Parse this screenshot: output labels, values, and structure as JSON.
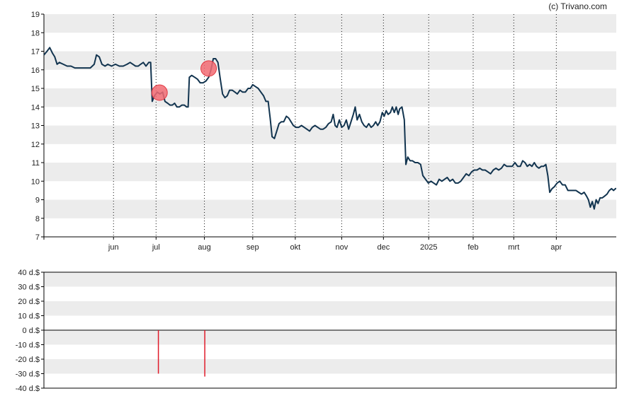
{
  "copyright": "(c) Trivano.com",
  "colors": {
    "price_line": "#12344f",
    "marker_fill": "#f26b73",
    "marker_stroke": "#e23a44",
    "volume_bar": "#e01b2a",
    "band": "#ececec",
    "grid_vertical": "#111111",
    "axis": "#000000"
  },
  "chart_data": [
    {
      "type": "line",
      "ylim": [
        7,
        19
      ],
      "yticks": [
        "7",
        "8",
        "9",
        "10",
        "11",
        "12",
        "13",
        "14",
        "15",
        "16",
        "17",
        "18",
        "19"
      ],
      "grid": "dotted vertical lines at month ticks, alternating horizontal bands",
      "x_tick_labels": [
        "jun",
        "jul",
        "aug",
        "sep",
        "okt",
        "nov",
        "dec",
        "2025",
        "feb",
        "mrt",
        "apr"
      ],
      "x_tick_positions": [
        18,
        29,
        41.5,
        54,
        65,
        77,
        87.8,
        99.5,
        111,
        121.5,
        132.5
      ],
      "x_range": [
        0,
        148
      ],
      "price": [
        [
          0,
          16.8
        ],
        [
          0.8,
          17.0
        ],
        [
          1.5,
          17.2
        ],
        [
          2.2,
          16.9
        ],
        [
          2.8,
          16.7
        ],
        [
          3.4,
          16.3
        ],
        [
          4,
          16.4
        ],
        [
          5,
          16.3
        ],
        [
          6,
          16.2
        ],
        [
          7,
          16.2
        ],
        [
          8,
          16.1
        ],
        [
          9,
          16.1
        ],
        [
          10,
          16.1
        ],
        [
          11,
          16.1
        ],
        [
          12,
          16.1
        ],
        [
          13,
          16.3
        ],
        [
          13.6,
          16.8
        ],
        [
          14.3,
          16.7
        ],
        [
          15,
          16.3
        ],
        [
          15.8,
          16.2
        ],
        [
          16.5,
          16.3
        ],
        [
          17.5,
          16.2
        ],
        [
          18.5,
          16.3
        ],
        [
          19.5,
          16.2
        ],
        [
          20.5,
          16.2
        ],
        [
          21.5,
          16.3
        ],
        [
          22.3,
          16.4
        ],
        [
          23,
          16.3
        ],
        [
          23.7,
          16.2
        ],
        [
          24.4,
          16.2
        ],
        [
          25,
          16.3
        ],
        [
          25.7,
          16.4
        ],
        [
          26.4,
          16.2
        ],
        [
          27.1,
          16.4
        ],
        [
          27.6,
          16.4
        ],
        [
          28.0,
          14.3
        ],
        [
          28.6,
          14.6
        ],
        [
          29.3,
          14.8
        ],
        [
          30,
          14.7
        ],
        [
          30.7,
          14.8
        ],
        [
          31.3,
          14.3
        ],
        [
          32,
          14.2
        ],
        [
          32.6,
          14.1
        ],
        [
          33.2,
          14.1
        ],
        [
          33.8,
          14.2
        ],
        [
          34.4,
          14.0
        ],
        [
          35,
          14.0
        ],
        [
          35.7,
          14.1
        ],
        [
          36.3,
          14.1
        ],
        [
          36.9,
          14.0
        ],
        [
          37.3,
          14.0
        ],
        [
          37.6,
          15.6
        ],
        [
          38.2,
          15.7
        ],
        [
          39,
          15.6
        ],
        [
          39.7,
          15.5
        ],
        [
          40.4,
          15.3
        ],
        [
          41.2,
          15.3
        ],
        [
          41.9,
          15.4
        ],
        [
          42.6,
          15.6
        ],
        [
          43.2,
          16.0
        ],
        [
          43.8,
          16.6
        ],
        [
          44.4,
          16.6
        ],
        [
          45,
          16.4
        ],
        [
          45.6,
          15.5
        ],
        [
          46.2,
          14.7
        ],
        [
          46.8,
          14.5
        ],
        [
          47.4,
          14.6
        ],
        [
          48,
          14.9
        ],
        [
          48.7,
          14.9
        ],
        [
          49.4,
          14.8
        ],
        [
          50,
          14.7
        ],
        [
          50.7,
          14.9
        ],
        [
          51.4,
          14.8
        ],
        [
          52.1,
          14.8
        ],
        [
          52.8,
          15.0
        ],
        [
          53.4,
          15.0
        ],
        [
          54,
          15.2
        ],
        [
          54.7,
          15.1
        ],
        [
          55.4,
          15.0
        ],
        [
          56.1,
          14.8
        ],
        [
          56.8,
          14.6
        ],
        [
          57.4,
          14.3
        ],
        [
          58,
          14.3
        ],
        [
          58.5,
          13.4
        ],
        [
          59,
          12.4
        ],
        [
          59.6,
          12.3
        ],
        [
          60.2,
          12.7
        ],
        [
          60.8,
          13.1
        ],
        [
          61.4,
          13.2
        ],
        [
          62,
          13.2
        ],
        [
          62.7,
          13.5
        ],
        [
          63.3,
          13.4
        ],
        [
          63.9,
          13.2
        ],
        [
          64.5,
          13.0
        ],
        [
          65.2,
          12.9
        ],
        [
          65.9,
          12.9
        ],
        [
          66.6,
          13.0
        ],
        [
          67.3,
          12.9
        ],
        [
          68,
          12.8
        ],
        [
          68.7,
          12.7
        ],
        [
          69.4,
          12.9
        ],
        [
          70.1,
          13.0
        ],
        [
          70.8,
          12.9
        ],
        [
          71.5,
          12.8
        ],
        [
          72.2,
          12.8
        ],
        [
          72.9,
          12.9
        ],
        [
          73.6,
          13.1
        ],
        [
          74.3,
          13.2
        ],
        [
          74.8,
          13.6
        ],
        [
          75.3,
          13.0
        ],
        [
          75.8,
          12.9
        ],
        [
          76.4,
          13.3
        ],
        [
          77,
          12.9
        ],
        [
          77.6,
          13.0
        ],
        [
          78.2,
          13.3
        ],
        [
          78.8,
          12.8
        ],
        [
          79.4,
          13.2
        ],
        [
          80,
          13.6
        ],
        [
          80.5,
          14.0
        ],
        [
          81,
          13.3
        ],
        [
          81.6,
          13.6
        ],
        [
          82.2,
          13.2
        ],
        [
          82.8,
          13.0
        ],
        [
          83.4,
          12.9
        ],
        [
          84,
          13.1
        ],
        [
          84.6,
          12.9
        ],
        [
          85.2,
          13.0
        ],
        [
          85.8,
          13.2
        ],
        [
          86.3,
          13.0
        ],
        [
          86.9,
          13.2
        ],
        [
          87.5,
          13.7
        ],
        [
          88,
          13.5
        ],
        [
          88.5,
          13.8
        ],
        [
          89,
          13.6
        ],
        [
          89.6,
          13.7
        ],
        [
          90.1,
          14.0
        ],
        [
          90.6,
          13.7
        ],
        [
          91.1,
          14.0
        ],
        [
          91.6,
          13.6
        ],
        [
          92.0,
          13.9
        ],
        [
          92.6,
          14.0
        ],
        [
          93.2,
          13.3
        ],
        [
          93.6,
          10.9
        ],
        [
          94.1,
          11.3
        ],
        [
          94.7,
          11.1
        ],
        [
          95.3,
          11.1
        ],
        [
          96,
          11.0
        ],
        [
          96.7,
          11.0
        ],
        [
          97.4,
          10.9
        ],
        [
          98,
          10.3
        ],
        [
          98.7,
          10.1
        ],
        [
          99.4,
          9.9
        ],
        [
          100.1,
          10.0
        ],
        [
          100.8,
          9.9
        ],
        [
          101.5,
          9.8
        ],
        [
          102.2,
          10.1
        ],
        [
          102.9,
          10.0
        ],
        [
          103.6,
          10.1
        ],
        [
          104.3,
          10.2
        ],
        [
          105,
          10.0
        ],
        [
          105.7,
          10.1
        ],
        [
          106.4,
          9.9
        ],
        [
          107.1,
          9.9
        ],
        [
          107.8,
          10.0
        ],
        [
          108.5,
          10.2
        ],
        [
          109.2,
          10.4
        ],
        [
          109.9,
          10.3
        ],
        [
          110.6,
          10.5
        ],
        [
          111.3,
          10.6
        ],
        [
          112,
          10.6
        ],
        [
          112.7,
          10.7
        ],
        [
          113.4,
          10.6
        ],
        [
          114.1,
          10.6
        ],
        [
          114.8,
          10.5
        ],
        [
          115.5,
          10.4
        ],
        [
          116.2,
          10.6
        ],
        [
          116.9,
          10.7
        ],
        [
          117.6,
          10.6
        ],
        [
          118.3,
          10.7
        ],
        [
          119,
          10.9
        ],
        [
          119.7,
          10.8
        ],
        [
          120.4,
          10.8
        ],
        [
          121.1,
          10.8
        ],
        [
          121.8,
          11.0
        ],
        [
          122.5,
          10.8
        ],
        [
          123.2,
          10.8
        ],
        [
          123.8,
          11.1
        ],
        [
          124.4,
          11.0
        ],
        [
          125,
          10.8
        ],
        [
          125.6,
          10.9
        ],
        [
          126.2,
          10.8
        ],
        [
          126.8,
          11.0
        ],
        [
          127.4,
          10.8
        ],
        [
          128,
          10.7
        ],
        [
          128.6,
          10.8
        ],
        [
          129.2,
          10.8
        ],
        [
          129.8,
          10.9
        ],
        [
          130.3,
          10.3
        ],
        [
          130.8,
          9.4
        ],
        [
          131.4,
          9.6
        ],
        [
          132,
          9.7
        ],
        [
          132.7,
          9.9
        ],
        [
          133.4,
          10.0
        ],
        [
          134.1,
          9.8
        ],
        [
          134.8,
          9.8
        ],
        [
          135.5,
          9.5
        ],
        [
          136.2,
          9.5
        ],
        [
          136.9,
          9.5
        ],
        [
          137.6,
          9.5
        ],
        [
          138.3,
          9.4
        ],
        [
          139,
          9.3
        ],
        [
          139.7,
          9.4
        ],
        [
          140.3,
          9.2
        ],
        [
          140.8,
          9.0
        ],
        [
          141.3,
          8.6
        ],
        [
          141.8,
          8.9
        ],
        [
          142.3,
          8.5
        ],
        [
          142.8,
          9.0
        ],
        [
          143.3,
          8.8
        ],
        [
          143.8,
          9.1
        ],
        [
          144.4,
          9.1
        ],
        [
          145,
          9.2
        ],
        [
          145.6,
          9.3
        ],
        [
          146.2,
          9.5
        ],
        [
          146.8,
          9.6
        ],
        [
          147.3,
          9.5
        ],
        [
          147.8,
          9.6
        ],
        [
          148,
          9.6
        ]
      ],
      "markers": [
        {
          "x": 29.9,
          "y": 14.77
        },
        {
          "x": 42.6,
          "y": 16.07
        }
      ]
    },
    {
      "type": "bar",
      "ylim": [
        -40,
        40
      ],
      "yticks": [
        "40 d.$",
        "30 d.$",
        "20 d.$",
        "10 d.$",
        "0 d.$",
        "-10 d.$",
        "-20 d.$",
        "-30 d.$",
        "-40 d.$"
      ],
      "bars": [
        {
          "x": 29.6,
          "value": -30
        },
        {
          "x": 41.6,
          "value": -32
        }
      ]
    }
  ]
}
